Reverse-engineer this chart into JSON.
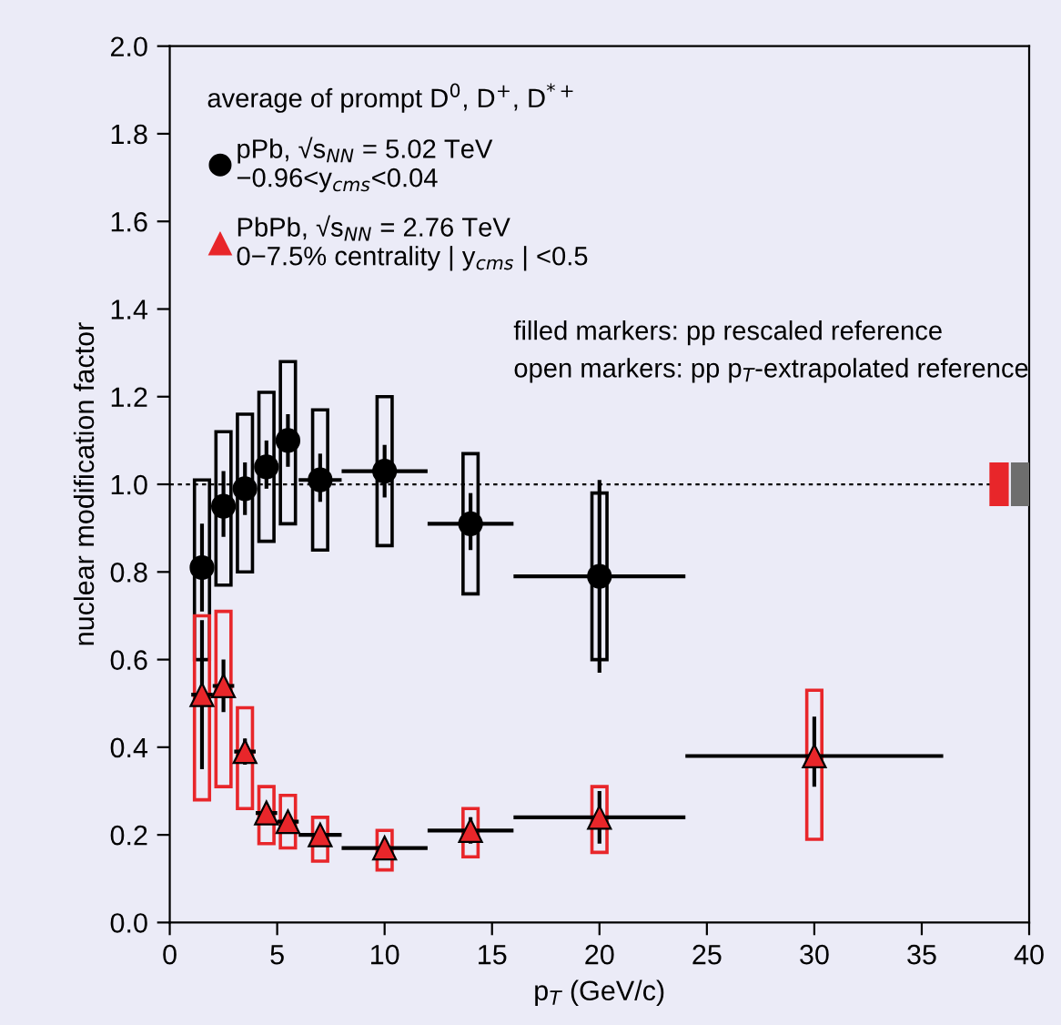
{
  "chart_data": {
    "type": "scatter",
    "xlabel": "p$_{T}$ (GeV/c)",
    "ylabel": "nuclear modification factor",
    "legend_title": "average of prompt D$^{0}$, D$^{+}$, D$^{*+}$",
    "xlim": [
      0,
      40
    ],
    "ylim": [
      0,
      2.0
    ],
    "xticks": [
      0,
      5,
      10,
      15,
      20,
      25,
      30,
      35,
      40
    ],
    "yticks": [
      {
        "value": 0,
        "label": "0.0"
      },
      0.2,
      0.4,
      0.6,
      0.8,
      {
        "value": 1,
        "label": "1.0"
      },
      1.2,
      1.4,
      1.6,
      1.8,
      {
        "value": 2,
        "label": "2.0"
      }
    ],
    "grid": false,
    "legend": "top left",
    "annotations": [
      "filled markers: pp rescaled reference",
      "open markers: pp p$_{T}$-extrapolated reference"
    ],
    "ref_lines": [
      {
        "axis": "y",
        "value": 1,
        "line_style": "dotted",
        "color": "#000000"
      }
    ],
    "series": [
      {
        "type": "bar",
        "color": "#000000",
        "x": [
          1.5,
          2.5,
          3.5,
          4.5,
          5.5,
          7,
          10,
          14,
          20
        ],
        "base": [
          0.6,
          0.77,
          0.8,
          0.87,
          0.91,
          0.85,
          0.86,
          0.75,
          0.6
        ],
        "values": [
          0.41,
          0.35,
          0.36,
          0.34,
          0.37,
          0.32,
          0.34,
          0.32,
          0.38
        ]
      },
      {
        "name": "pPb, √s$_{NN}$ = 5.02 TeV\n−0.96<y$_{cms}$<0.04",
        "color": "#000000",
        "marker": "circle",
        "x": [
          1.5,
          2.5,
          3.5,
          4.5,
          5.5,
          7,
          10,
          14,
          20
        ],
        "values": [
          0.81,
          0.95,
          0.99,
          1.04,
          1.1,
          1.01,
          1.03,
          0.91,
          0.79
        ],
        "errors": [
          [
            0.71,
            0.91
          ],
          [
            0.88,
            1.03
          ],
          [
            0.93,
            1.05
          ],
          [
            0.99,
            1.1
          ],
          [
            1.04,
            1.16
          ],
          [
            0.96,
            1.07
          ],
          [
            0.97,
            1.09
          ],
          [
            0.85,
            0.98
          ],
          [
            0.57,
            1.01
          ]
        ],
        "xerrors": [
          [
            1,
            2
          ],
          [
            2,
            3
          ],
          [
            3,
            4
          ],
          [
            4,
            5
          ],
          [
            5,
            6
          ],
          [
            6,
            8
          ],
          [
            8,
            12
          ],
          [
            12,
            16
          ],
          [
            16,
            24
          ]
        ]
      },
      {
        "type": "bar",
        "color": "#e8262a",
        "x": [
          1.5,
          2.5,
          3.5,
          4.5,
          5.5,
          7,
          10,
          14,
          20,
          30
        ],
        "base": [
          0.28,
          0.31,
          0.26,
          0.18,
          0.17,
          0.14,
          0.12,
          0.15,
          0.16,
          0.19
        ],
        "values": [
          0.42,
          0.4,
          0.23,
          0.13,
          0.12,
          0.1,
          0.09,
          0.11,
          0.15,
          0.34
        ]
      },
      {
        "name": "PbPb, √s$_{NN}$ = 2.76 TeV\n0−7.5% centrality | y$_{cms}$ | <0.5",
        "color": "#e8262a",
        "marker": "triangle",
        "x": [
          1.5,
          2.5,
          3.5,
          4.5,
          5.5,
          7,
          10,
          14,
          20,
          30
        ],
        "values": [
          0.52,
          0.54,
          0.39,
          0.25,
          0.23,
          0.2,
          0.17,
          0.21,
          0.24,
          0.38
        ],
        "errors": [
          [
            0.35,
            0.69
          ],
          [
            0.48,
            0.6
          ],
          [
            0.36,
            0.42
          ],
          [
            0.23,
            0.27
          ],
          [
            0.21,
            0.25
          ],
          [
            0.18,
            0.22
          ],
          [
            0.15,
            0.19
          ],
          [
            0.18,
            0.24
          ],
          [
            0.18,
            0.3
          ],
          [
            0.31,
            0.47
          ]
        ],
        "xerrors": [
          [
            1,
            2
          ],
          [
            2,
            3
          ],
          [
            3,
            4
          ],
          [
            4,
            5
          ],
          [
            5,
            6
          ],
          [
            6,
            8
          ],
          [
            8,
            12
          ],
          [
            12,
            16
          ],
          [
            16,
            24
          ],
          [
            24,
            36
          ]
        ]
      },
      {
        "type": "bar",
        "colors": [
          "#e8262a"
        ],
        "x": [
          38.6
        ],
        "base": [
          0.95
        ],
        "values": [
          0.1
        ]
      },
      {
        "type": "bar",
        "colors": [
          "#6e6e6e"
        ],
        "x": [
          39.6
        ],
        "base": [
          0.95
        ],
        "values": [
          0.1
        ]
      }
    ]
  }
}
